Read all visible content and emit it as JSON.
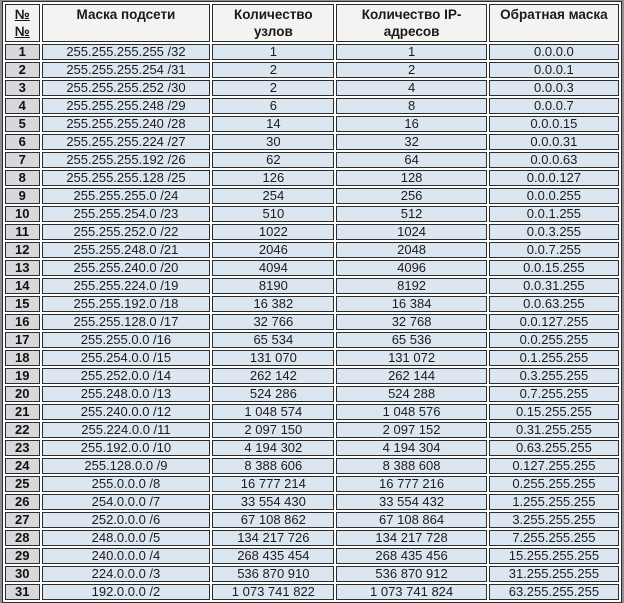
{
  "colors": {
    "data_cell_blue": "#dce6f1",
    "number_cell_gray": "#d6d8db",
    "header_gray": "#f3f3f2",
    "border_dark": "#2d2d2d",
    "gap_white": "#ffffff"
  },
  "table": {
    "headers": [
      "№№",
      "Маска подсети",
      "Количество\nузлов",
      "Количество IP-\nадресов",
      "Обратная маска"
    ],
    "rows": [
      [
        "1",
        "255.255.255.255 /32",
        "1",
        "1",
        "0.0.0.0"
      ],
      [
        "2",
        "255.255.255.254 /31",
        "2",
        "2",
        "0.0.0.1"
      ],
      [
        "3",
        "255.255.255.252 /30",
        "2",
        "4",
        "0.0.0.3"
      ],
      [
        "4",
        "255.255.255.248 /29",
        "6",
        "8",
        "0.0.0.7"
      ],
      [
        "5",
        "255.255.255.240 /28",
        "14",
        "16",
        "0.0.0.15"
      ],
      [
        "6",
        "255.255.255.224 /27",
        "30",
        "32",
        "0.0.0.31"
      ],
      [
        "7",
        "255.255.255.192 /26",
        "62",
        "64",
        "0.0.0.63"
      ],
      [
        "8",
        "255.255.255.128 /25",
        "126",
        "128",
        "0.0.0.127"
      ],
      [
        "9",
        "255.255.255.0 /24",
        "254",
        "256",
        "0.0.0.255"
      ],
      [
        "10",
        "255.255.254.0 /23",
        "510",
        "512",
        "0.0.1.255"
      ],
      [
        "11",
        "255.255.252.0 /22",
        "1022",
        "1024",
        "0.0.3.255"
      ],
      [
        "12",
        "255.255.248.0 /21",
        "2046",
        "2048",
        "0.0.7.255"
      ],
      [
        "13",
        "255.255.240.0 /20",
        "4094",
        "4096",
        "0.0.15.255"
      ],
      [
        "14",
        "255.255.224.0 /19",
        "8190",
        "8192",
        "0.0.31.255"
      ],
      [
        "15",
        "255.255.192.0 /18",
        "16 382",
        "16 384",
        "0.0.63.255"
      ],
      [
        "16",
        "255.255.128.0 /17",
        "32 766",
        "32 768",
        "0.0.127.255"
      ],
      [
        "17",
        "255.255.0.0 /16",
        "65 534",
        "65 536",
        "0.0.255.255"
      ],
      [
        "18",
        "255.254.0.0 /15",
        "131 070",
        "131 072",
        "0.1.255.255"
      ],
      [
        "19",
        "255.252.0.0 /14",
        "262 142",
        "262 144",
        "0.3.255.255"
      ],
      [
        "20",
        "255.248.0.0 /13",
        "524 286",
        "524 288",
        "0.7.255.255"
      ],
      [
        "21",
        "255.240.0.0 /12",
        "1 048 574",
        "1 048 576",
        "0.15.255.255"
      ],
      [
        "22",
        "255.224.0.0 /11",
        "2 097 150",
        "2 097 152",
        "0.31.255.255"
      ],
      [
        "23",
        "255.192.0.0 /10",
        "4 194 302",
        "4 194 304",
        "0.63.255.255"
      ],
      [
        "24",
        "255.128.0.0 /9",
        "8 388 606",
        "8 388 608",
        "0.127.255.255"
      ],
      [
        "25",
        "255.0.0.0 /8",
        "16 777 214",
        "16 777 216",
        "0.255.255.255"
      ],
      [
        "26",
        "254.0.0.0 /7",
        "33 554 430",
        "33 554 432",
        "1.255.255.255"
      ],
      [
        "27",
        "252.0.0.0 /6",
        "67 108 862",
        "67 108 864",
        "3.255.255.255"
      ],
      [
        "28",
        "248.0.0.0 /5",
        "134 217 726",
        "134 217 728",
        "7.255.255.255"
      ],
      [
        "29",
        "240.0.0.0 /4",
        "268 435 454",
        "268 435 456",
        "15.255.255.255"
      ],
      [
        "30",
        "224.0.0.0 /3",
        "536 870 910",
        "536 870 912",
        "31.255.255.255"
      ],
      [
        "31",
        "192.0.0.0 /2",
        "1 073 741 822",
        "1 073 741 824",
        "63.255.255.255"
      ]
    ]
  }
}
